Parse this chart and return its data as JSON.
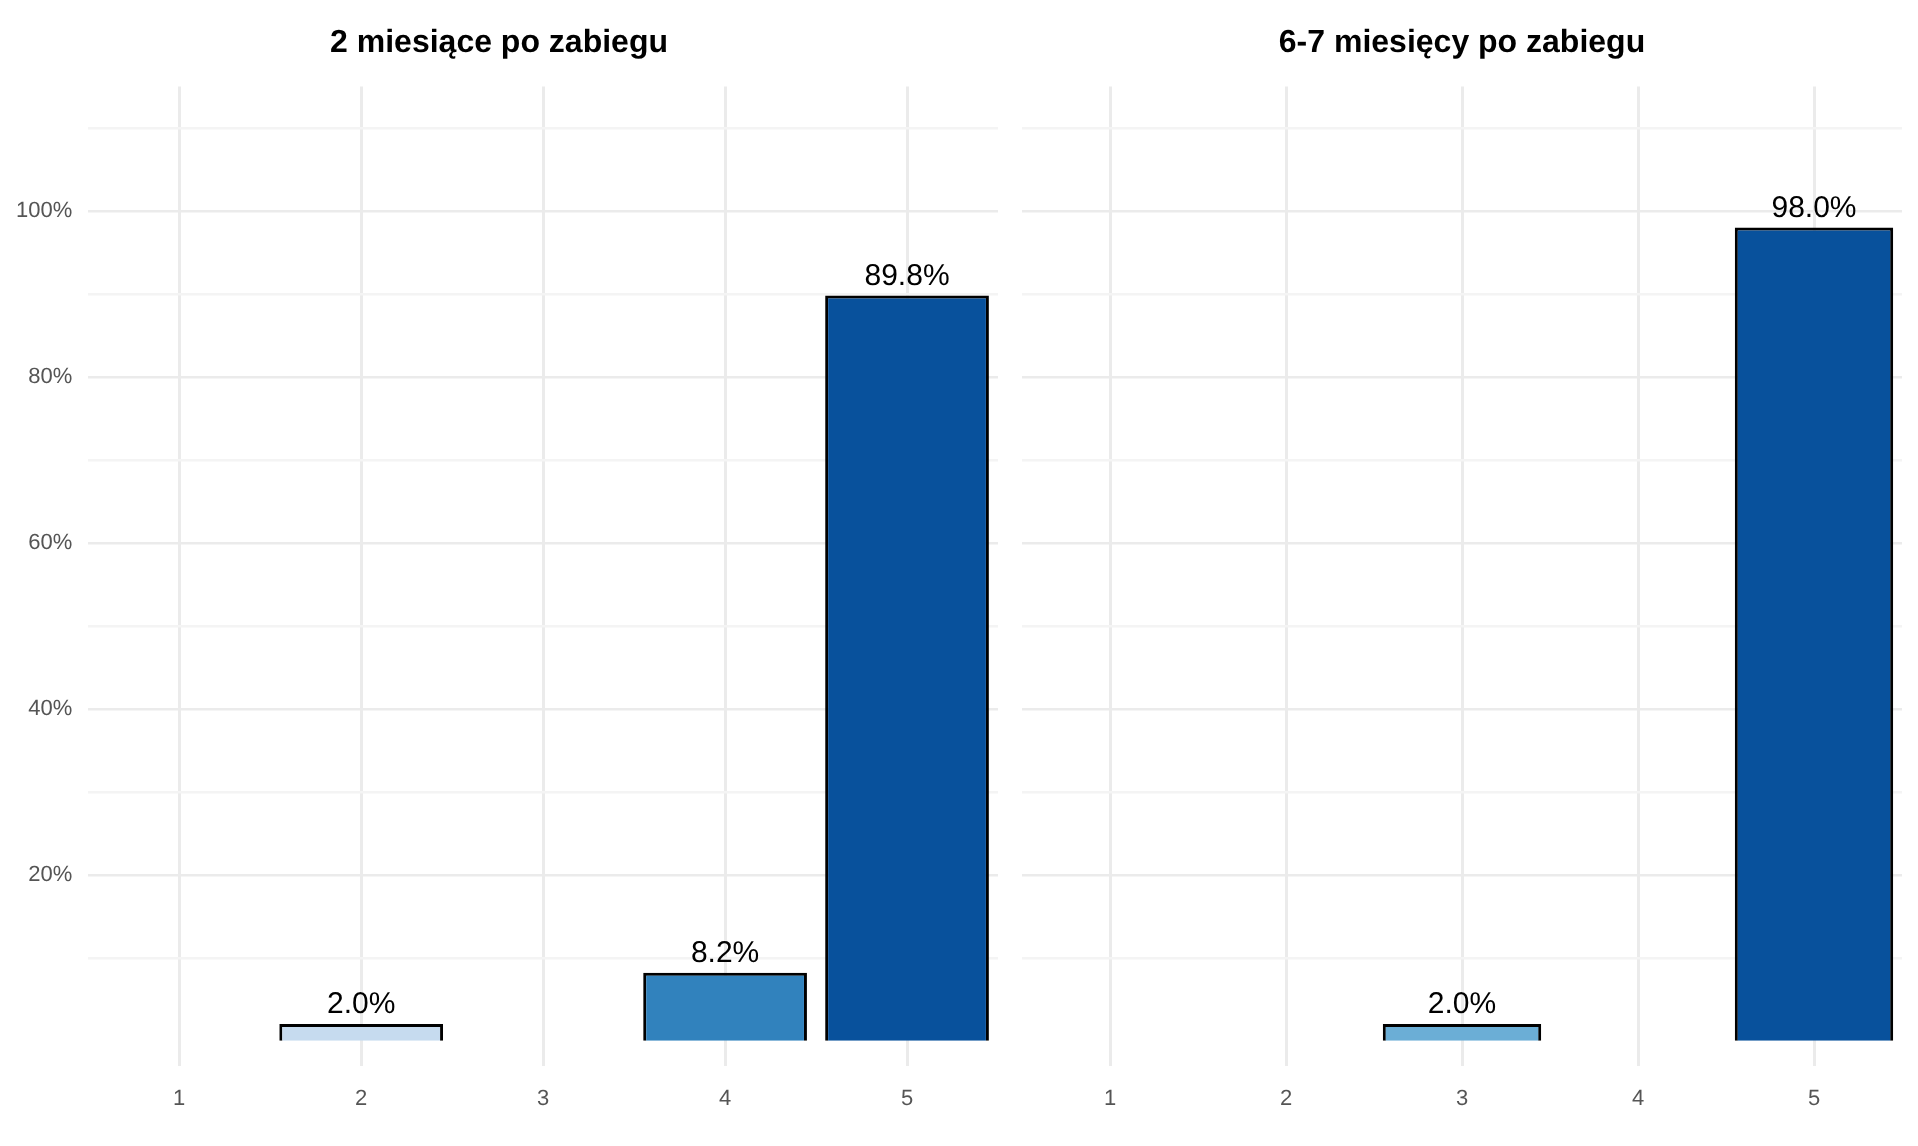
{
  "chart_data": [
    {
      "type": "bar",
      "title": "2 miesiące po zabiegu",
      "categories": [
        "1",
        "2",
        "3",
        "4",
        "5"
      ],
      "values": [
        null,
        2.0,
        null,
        8.2,
        89.8
      ],
      "colors": [
        "#c6dbef",
        "#c6dbef",
        "#6baed6",
        "#3182bd",
        "#08519c"
      ],
      "value_labels": [
        null,
        "2.0%",
        null,
        "8.2%",
        "89.8%"
      ],
      "ylim": [
        -3,
        115
      ],
      "yticks": [
        {
          "value": 10,
          "label": null
        },
        {
          "value": 20,
          "label": "20%"
        },
        {
          "value": 30,
          "label": null
        },
        {
          "value": 40,
          "label": "40%"
        },
        {
          "value": 50,
          "label": null
        },
        {
          "value": 60,
          "label": "60%"
        },
        {
          "value": 70,
          "label": null
        },
        {
          "value": 80,
          "label": "80%"
        },
        {
          "value": 90,
          "label": null
        },
        {
          "value": 100,
          "label": "100%"
        },
        {
          "value": 110,
          "label": null
        }
      ],
      "grid": true,
      "legend": false
    },
    {
      "type": "bar",
      "title": "6-7 miesięcy po zabiegu",
      "categories": [
        "1",
        "2",
        "3",
        "4",
        "5"
      ],
      "values": [
        null,
        null,
        2.0,
        null,
        98.0
      ],
      "colors": [
        "#c6dbef",
        "#c6dbef",
        "#6baed6",
        "#3182bd",
        "#08519c"
      ],
      "value_labels": [
        null,
        null,
        "2.0%",
        null,
        "98.0%"
      ],
      "ylim": [
        -3,
        115
      ],
      "yticks": [
        10,
        20,
        30,
        40,
        50,
        60,
        70,
        80,
        90,
        100,
        110
      ],
      "grid": true,
      "legend": false,
      "tick_labels": "x"
    }
  ]
}
